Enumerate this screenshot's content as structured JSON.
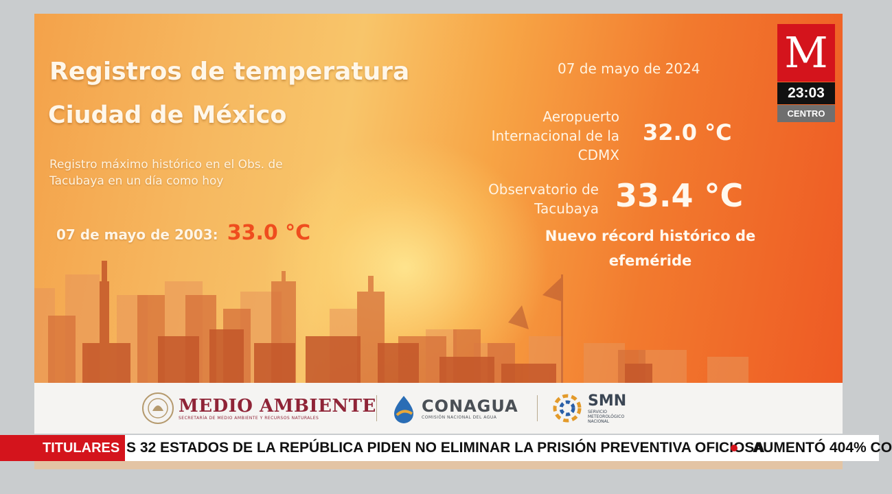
{
  "slide": {
    "title": "Registros de temperatura",
    "subtitle": "Ciudad de México",
    "historic_description": "Registro máximo histórico en el Obs. de Tacubaya en un día como hoy",
    "historic_date": "07 de mayo de 2003:",
    "historic_value": "33.0  °C",
    "current_date": "07 de mayo de 2024",
    "station1_name": "Aeropuerto Internacional de la CDMX",
    "station1_value": "32.0 °C",
    "station2_name": "Observatorio de Tacubaya",
    "station2_value": "33.4 °C",
    "record_note": "Nuevo récord histórico de efeméride"
  },
  "logos": {
    "medio_ambiente_title": "MEDIO AMBIENTE",
    "medio_ambiente_sub": "SECRETARÍA DE MEDIO AMBIENTE Y RECURSOS NATURALES",
    "conagua_title": "CONAGUA",
    "conagua_sub": "COMISIÓN NACIONAL DEL AGUA",
    "smn_title": "SMN",
    "smn_sub": "SERVICIO METEOROLÓGICO NACIONAL"
  },
  "ticker": {
    "label": "TITULARES",
    "headline": "S 32 ESTADOS DE LA REPÚBLICA PIDEN NO ELIMINAR LA PRISIÓN PREVENTIVA OFICIOSA",
    "next_headline": "AUMENTÓ 404% CO"
  },
  "channel_bug": {
    "logo_letter": "M",
    "time": "23:03",
    "zone": "CENTRO"
  },
  "colors": {
    "brand_red": "#d4141c",
    "record_orange": "#ef4d1e",
    "medio_ambiente_maroon": "#8f2437"
  }
}
